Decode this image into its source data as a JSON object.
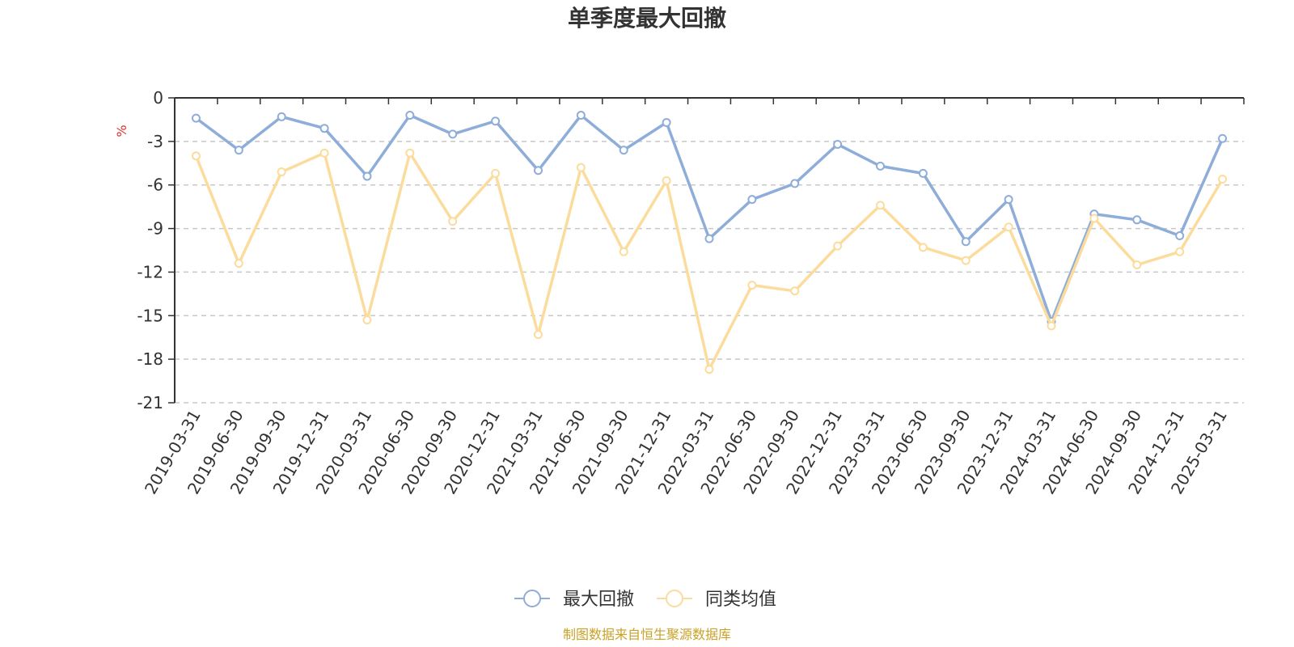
{
  "chart_data": {
    "type": "line",
    "title": "单季度最大回撤",
    "ylabel": "%",
    "ylim": [
      -21,
      0
    ],
    "yticks": [
      0,
      -3,
      -6,
      -9,
      -12,
      -15,
      -18,
      -21
    ],
    "grid": true,
    "legend_position": "bottom-center",
    "categories": [
      "2019-03-31",
      "2019-06-30",
      "2019-09-30",
      "2019-12-31",
      "2020-03-31",
      "2020-06-30",
      "2020-09-30",
      "2020-12-31",
      "2021-03-31",
      "2021-06-30",
      "2021-09-30",
      "2021-12-31",
      "2022-03-31",
      "2022-06-30",
      "2022-09-30",
      "2022-12-31",
      "2023-03-31",
      "2023-06-30",
      "2023-09-30",
      "2023-12-31",
      "2024-03-31",
      "2024-06-30",
      "2024-09-30",
      "2024-12-31",
      "2025-03-31"
    ],
    "series": [
      {
        "name": "最大回撤",
        "color": "#8eadd9",
        "values": [
          -1.4,
          -3.6,
          -1.3,
          -2.1,
          -5.4,
          -1.2,
          -2.5,
          -1.6,
          -5.0,
          -1.2,
          -3.6,
          -1.7,
          -9.7,
          -7.0,
          -5.9,
          -3.2,
          -4.7,
          -5.2,
          -9.9,
          -7.0,
          -15.4,
          -8.0,
          -8.4,
          -9.5,
          -2.8
        ]
      },
      {
        "name": "同类均值",
        "color": "#fbdc9c",
        "values": [
          -4.0,
          -11.4,
          -5.1,
          -3.8,
          -15.3,
          -3.8,
          -8.5,
          -5.2,
          -16.3,
          -4.8,
          -10.6,
          -5.7,
          -18.7,
          -12.9,
          -13.3,
          -10.2,
          -7.4,
          -10.3,
          -11.2,
          -8.9,
          -15.7,
          -8.3,
          -11.5,
          -10.6,
          -5.6
        ]
      }
    ],
    "source": "制图数据来自恒生聚源数据库"
  }
}
